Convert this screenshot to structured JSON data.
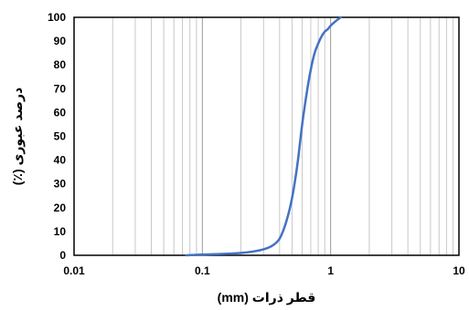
{
  "chart_data": {
    "type": "line",
    "xlabel": "قطر ذرات (mm)",
    "ylabel": "درصد عبوری (٪)",
    "x_scale": "log",
    "xlim": [
      0.01,
      10
    ],
    "ylim": [
      0,
      100
    ],
    "x_ticks": [
      "0.01",
      "0.1",
      "1",
      "10"
    ],
    "y_ticks": [
      "0",
      "10",
      "20",
      "30",
      "40",
      "50",
      "60",
      "70",
      "80",
      "90",
      "100"
    ],
    "grid": "vertical minor and major",
    "legend": "none",
    "series": [
      {
        "color": "#4472C4",
        "x": [
          0.075,
          0.1,
          0.15,
          0.2,
          0.25,
          0.3,
          0.35,
          0.4,
          0.45,
          0.5,
          0.55,
          0.6,
          0.65,
          0.7,
          0.75,
          0.8,
          0.85,
          0.9,
          0.95,
          1.0,
          1.1,
          1.2
        ],
        "y": [
          0,
          0.3,
          0.6,
          1.0,
          1.6,
          2.5,
          4.0,
          7.0,
          14.0,
          24.0,
          38.0,
          55.0,
          68.0,
          78.0,
          85.0,
          89.0,
          92.0,
          94.0,
          95.0,
          96.5,
          98.5,
          100
        ]
      }
    ]
  }
}
